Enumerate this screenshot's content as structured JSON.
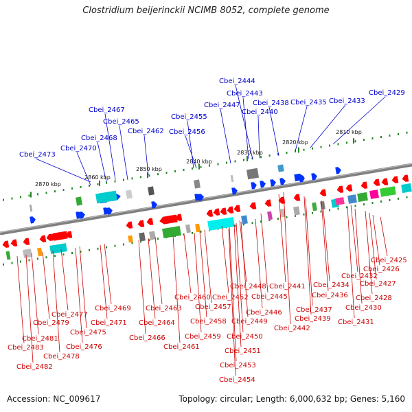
{
  "header": {
    "title": "Clostridium beijerinckii NCIMB 8052, complete genome"
  },
  "footer": {
    "accession": "Accession: NC_009617",
    "summary": "Topology: circular; Length: 6,000,632 bp; Genes: 5,160"
  },
  "colors": {
    "forward_label": "#0000cc",
    "reverse_label": "#cc0000",
    "forward_gene": "#0033ff",
    "reverse_gene": "#ff0000",
    "backbone": "#808080",
    "ticks": "#228822"
  },
  "scale_labels": [
    "2870 kbp",
    "2860 kbp",
    "2850 kbp",
    "2840 kbp",
    "2830 kbp",
    "2820 kbp",
    "2810 kbp"
  ],
  "forward_genes": [
    "Cbei_2473",
    "Cbei_2470",
    "Cbei_2468",
    "Cbei_2467",
    "Cbei_2465",
    "Cbei_2462",
    "Cbei_2456",
    "Cbei_2455",
    "Cbei_2447",
    "Cbei_2444",
    "Cbei_2443",
    "Cbei_2440",
    "Cbei_2438",
    "Cbei_2435",
    "Cbei_2433",
    "Cbei_2429"
  ],
  "reverse_genes": [
    "Cbei_2425",
    "Cbei_2426",
    "Cbei_2427",
    "Cbei_2428",
    "Cbei_2430",
    "Cbei_2431",
    "Cbei_2432",
    "Cbei_2434",
    "Cbei_2436",
    "Cbei_2437",
    "Cbei_2439",
    "Cbei_2441",
    "Cbei_2442",
    "Cbei_2445",
    "Cbei_2446",
    "Cbei_2448",
    "Cbei_2449",
    "Cbei_2450",
    "Cbei_2451",
    "Cbei_2452",
    "Cbei_2453",
    "Cbei_2454",
    "Cbei_2457",
    "Cbei_2458",
    "Cbei_2459",
    "Cbei_2460",
    "Cbei_2461",
    "Cbei_2463",
    "Cbei_2464",
    "Cbei_2466",
    "Cbei_2469",
    "Cbei_2471",
    "Cbei_2475",
    "Cbei_2476",
    "Cbei_2477",
    "Cbei_2478",
    "Cbei_2479",
    "Cbei_2481",
    "Cbei_2482",
    "Cbei_2483"
  ]
}
